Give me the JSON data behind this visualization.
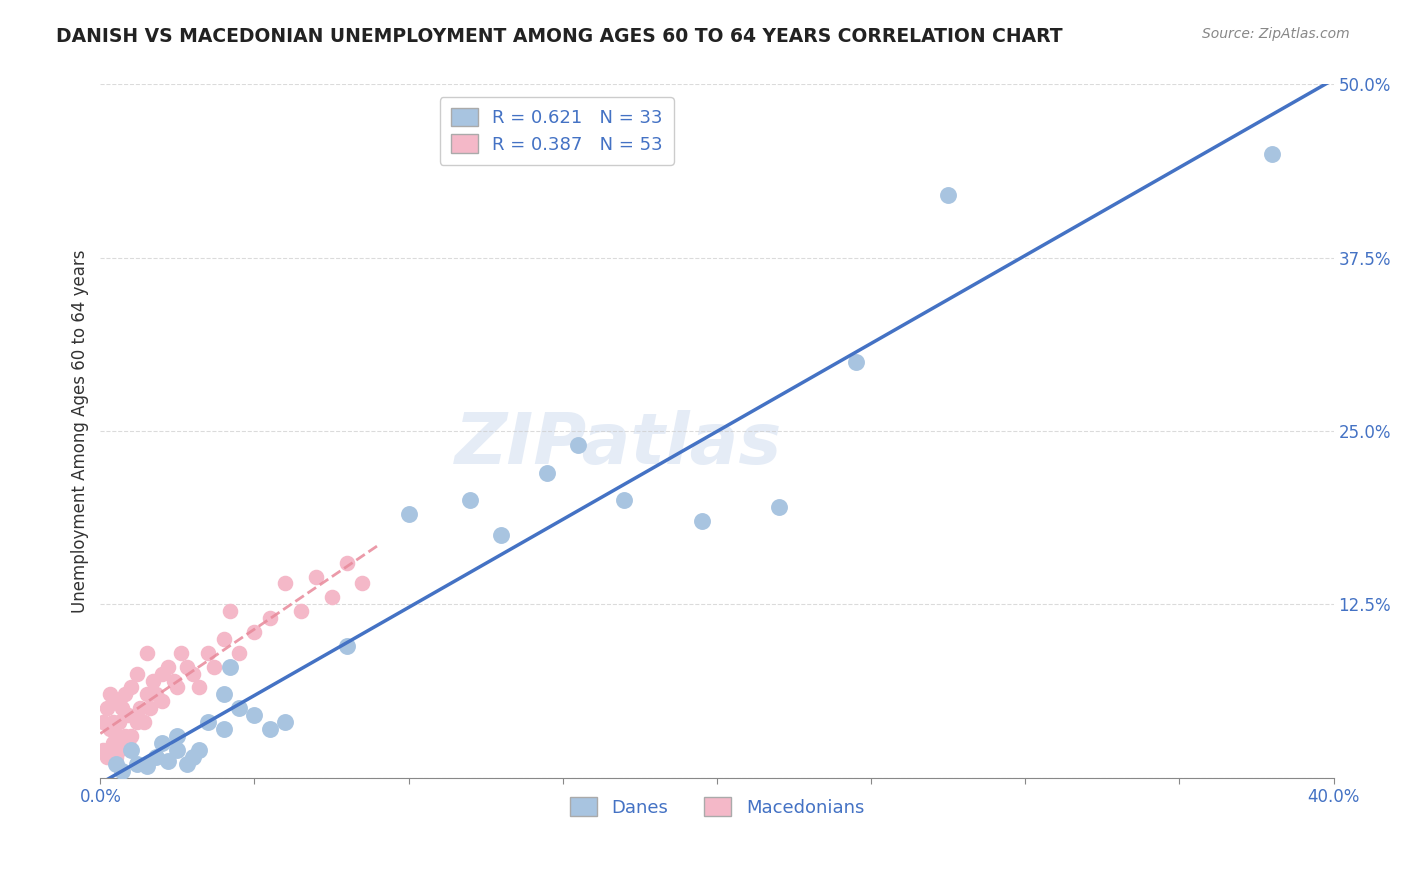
{
  "title": "DANISH VS MACEDONIAN UNEMPLOYMENT AMONG AGES 60 TO 64 YEARS CORRELATION CHART",
  "source": "Source: ZipAtlas.com",
  "ylabel": "Unemployment Among Ages 60 to 64 years",
  "xlim": [
    0.0,
    0.4
  ],
  "ylim": [
    0.0,
    0.5
  ],
  "xticks": [
    0.0,
    0.05,
    0.1,
    0.15,
    0.2,
    0.25,
    0.3,
    0.35,
    0.4
  ],
  "xticklabels": [
    "0.0%",
    "",
    "",
    "",
    "",
    "",
    "",
    "",
    "40.0%"
  ],
  "yticks": [
    0.0,
    0.125,
    0.25,
    0.375,
    0.5
  ],
  "yticklabels": [
    "",
    "12.5%",
    "25.0%",
    "37.5%",
    "50.0%"
  ],
  "danes_R": 0.621,
  "danes_N": 33,
  "macedonians_R": 0.387,
  "macedonians_N": 53,
  "danes_color": "#a8c4e0",
  "macedonians_color": "#f4b8c8",
  "danes_line_color": "#4472c4",
  "macedonians_line_color": "#e8899a",
  "legend_text_color": "#4472c4",
  "axis_color": "#4472c4",
  "grid_color": "#cccccc",
  "watermark": "ZIPatlas",
  "danes_x": [
    0.005,
    0.007,
    0.01,
    0.012,
    0.015,
    0.018,
    0.02,
    0.022,
    0.025,
    0.025,
    0.028,
    0.03,
    0.032,
    0.035,
    0.04,
    0.04,
    0.042,
    0.045,
    0.05,
    0.055,
    0.06,
    0.08,
    0.1,
    0.12,
    0.13,
    0.145,
    0.155,
    0.17,
    0.195,
    0.22,
    0.245,
    0.275,
    0.38
  ],
  "danes_y": [
    0.01,
    0.005,
    0.02,
    0.01,
    0.008,
    0.015,
    0.025,
    0.012,
    0.02,
    0.03,
    0.01,
    0.015,
    0.02,
    0.04,
    0.035,
    0.06,
    0.08,
    0.05,
    0.045,
    0.035,
    0.04,
    0.095,
    0.19,
    0.2,
    0.175,
    0.22,
    0.24,
    0.2,
    0.185,
    0.195,
    0.3,
    0.42,
    0.45
  ],
  "macedonians_x": [
    0.001,
    0.001,
    0.002,
    0.002,
    0.003,
    0.003,
    0.003,
    0.004,
    0.004,
    0.005,
    0.005,
    0.006,
    0.006,
    0.006,
    0.007,
    0.007,
    0.008,
    0.008,
    0.009,
    0.009,
    0.01,
    0.01,
    0.012,
    0.012,
    0.013,
    0.014,
    0.015,
    0.015,
    0.016,
    0.017,
    0.018,
    0.02,
    0.02,
    0.022,
    0.024,
    0.025,
    0.026,
    0.028,
    0.03,
    0.032,
    0.035,
    0.037,
    0.04,
    0.042,
    0.045,
    0.05,
    0.055,
    0.06,
    0.065,
    0.07,
    0.075,
    0.08,
    0.085
  ],
  "macedonians_y": [
    0.02,
    0.04,
    0.015,
    0.05,
    0.02,
    0.035,
    0.06,
    0.025,
    0.04,
    0.015,
    0.03,
    0.02,
    0.04,
    0.055,
    0.025,
    0.05,
    0.03,
    0.06,
    0.025,
    0.045,
    0.03,
    0.065,
    0.04,
    0.075,
    0.05,
    0.04,
    0.06,
    0.09,
    0.05,
    0.07,
    0.06,
    0.075,
    0.055,
    0.08,
    0.07,
    0.065,
    0.09,
    0.08,
    0.075,
    0.065,
    0.09,
    0.08,
    0.1,
    0.12,
    0.09,
    0.105,
    0.115,
    0.14,
    0.12,
    0.145,
    0.13,
    0.155,
    0.14
  ]
}
